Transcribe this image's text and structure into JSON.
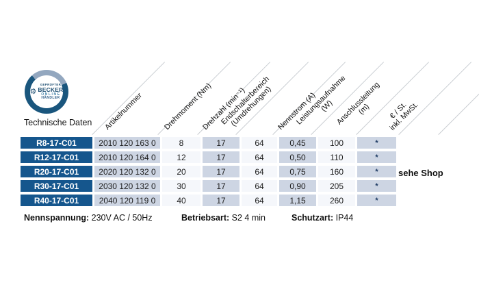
{
  "badge": {
    "line1": "GEPRÜFTER",
    "line2": "BECKER",
    "line3": "ONLINE",
    "line4": "HÄNDLER",
    "gear_icon": "⚙"
  },
  "page": {
    "section_title": "Technische Daten"
  },
  "colors": {
    "header_cell_blue": "#15568d",
    "light_cell_blue": "#cdd5e3",
    "white_cell": "#f5f7fb",
    "badge_ring_dark": "#1a567d",
    "badge_ring_light": "#93a7bf"
  },
  "table": {
    "columns": [
      "Artikelnummer",
      "Drehmoment (Nm)",
      "Drehzahl (min⁻¹)",
      "Endschalterbereich\n(Umdrehungen)",
      "Nennstrom (A)",
      "Leistungsaufnahme\n(W)",
      "Anschlussleitung\n(m)",
      "€ / St.\ninkl. MwSt."
    ],
    "rows": [
      {
        "model": "R8-17-C01",
        "artikelnummer": "2010 120 163 0",
        "drehmoment": "8",
        "drehzahl": "17",
        "endschalterbereich": "64",
        "nennstrom": "0,45",
        "leistungsaufnahme": "100",
        "anschlussleitung": "*"
      },
      {
        "model": "R12-17-C01",
        "artikelnummer": "2010 120 164 0",
        "drehmoment": "12",
        "drehzahl": "17",
        "endschalterbereich": "64",
        "nennstrom": "0,50",
        "leistungsaufnahme": "110",
        "anschlussleitung": "*"
      },
      {
        "model": "R20-17-C01",
        "artikelnummer": "2020 120 132 0",
        "drehmoment": "20",
        "drehzahl": "17",
        "endschalterbereich": "64",
        "nennstrom": "0,75",
        "leistungsaufnahme": "160",
        "anschlussleitung": "*"
      },
      {
        "model": "R30-17-C01",
        "artikelnummer": "2030 120 132 0",
        "drehmoment": "30",
        "drehzahl": "17",
        "endschalterbereich": "64",
        "nennstrom": "0,90",
        "leistungsaufnahme": "205",
        "anschlussleitung": "*"
      },
      {
        "model": "R40-17-C01",
        "artikelnummer": "2040 120 119 0",
        "drehmoment": "40",
        "drehzahl": "17",
        "endschalterbereich": "64",
        "nennstrom": "1,15",
        "leistungsaufnahme": "260",
        "anschlussleitung": "*"
      }
    ],
    "shop_note": "sehe Shop"
  },
  "footer": {
    "items": [
      {
        "label": "Nennspannung:",
        "value": "230V AC / 50Hz"
      },
      {
        "label": "Betriebsart:",
        "value": "S2 4 min"
      },
      {
        "label": "Schutzart:",
        "value": "IP44"
      }
    ]
  }
}
